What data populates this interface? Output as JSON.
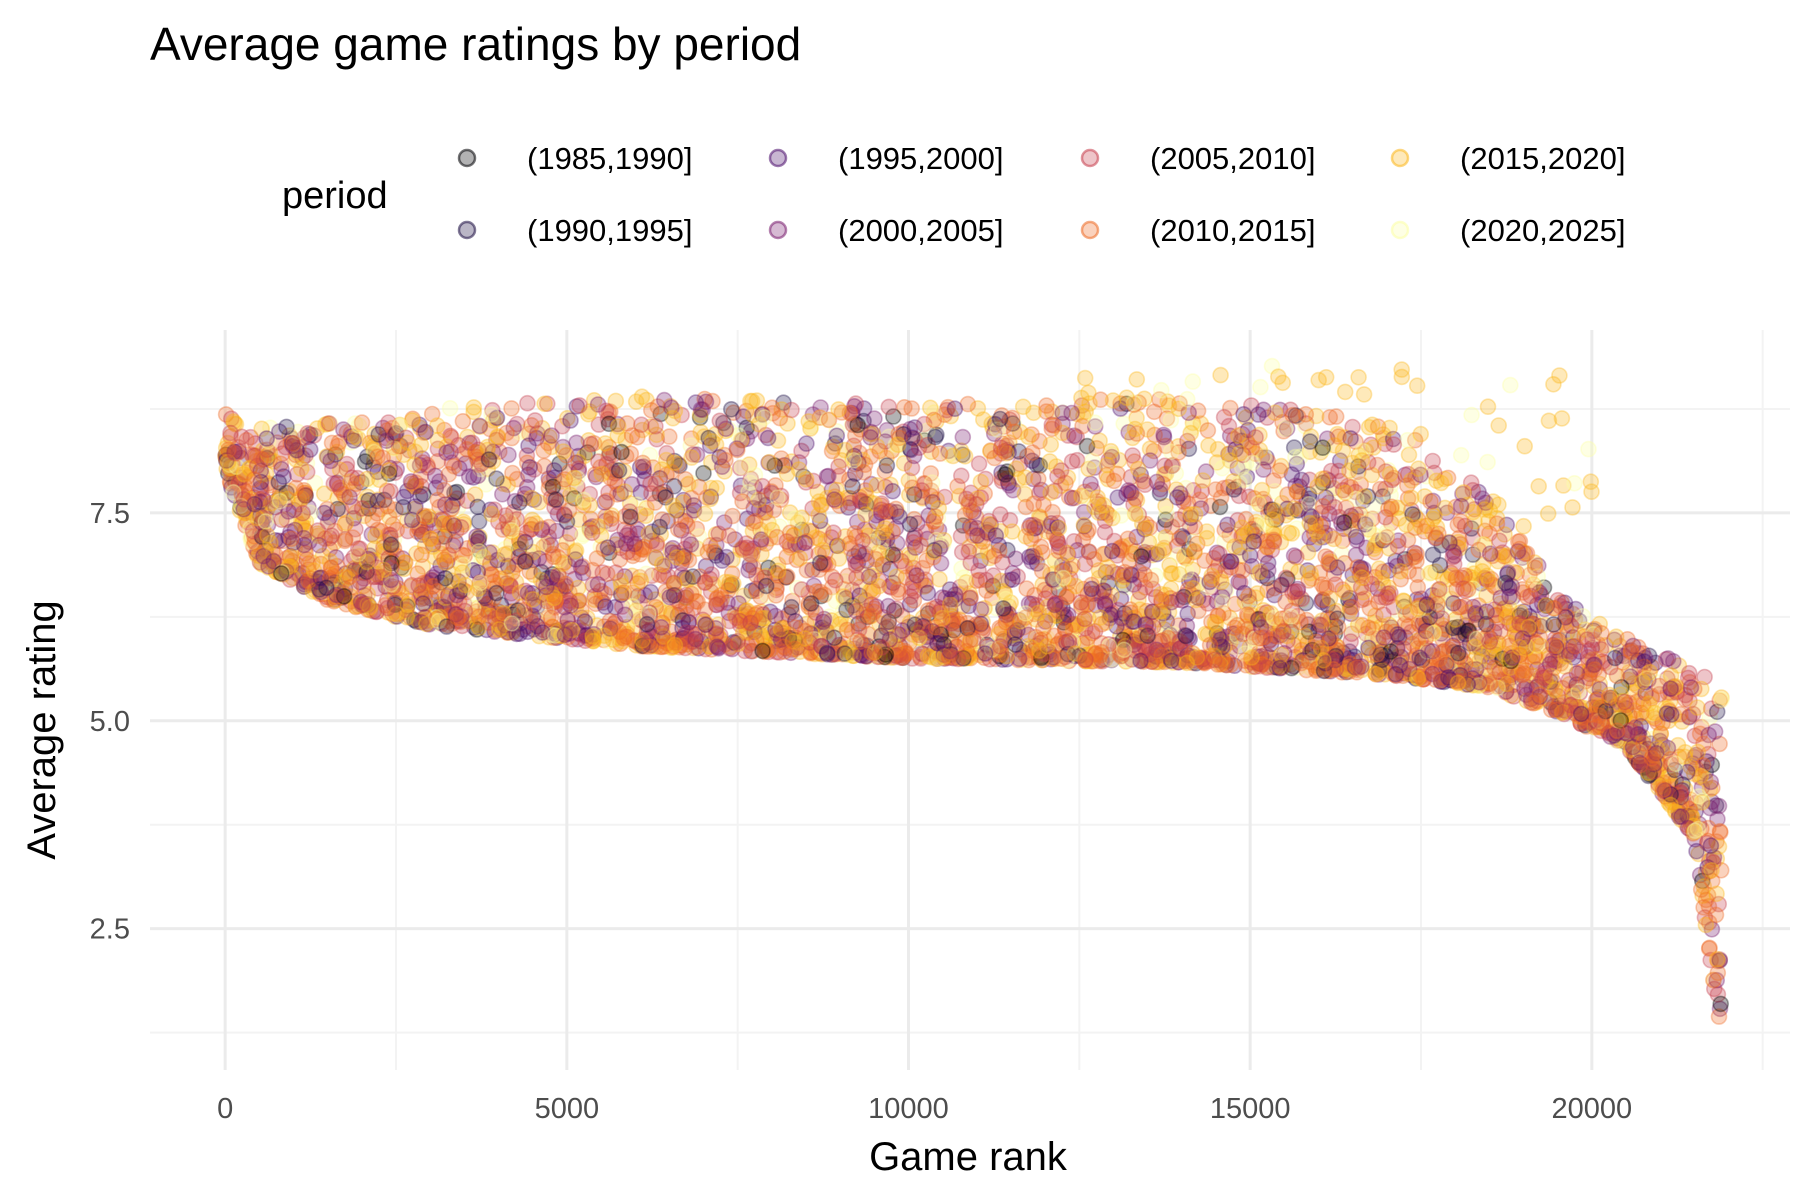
{
  "chart_data": {
    "type": "scatter",
    "title": "Average game ratings by period",
    "xlabel": "Game rank",
    "ylabel": "Average rating",
    "xlim": [
      -1100,
      22900
    ],
    "ylim": [
      0.8,
      9.7
    ],
    "x_ticks": [
      0,
      5000,
      10000,
      15000,
      20000
    ],
    "x_tick_labels": [
      "0",
      "5000",
      "10000",
      "15000",
      "20000"
    ],
    "y_ticks": [
      2.5,
      5.0,
      7.5
    ],
    "y_tick_labels": [
      "2.5",
      "5.0",
      "7.5"
    ],
    "grid": true,
    "legend": {
      "title": "period",
      "position": "top",
      "entries": [
        {
          "label": "(1985,1990]",
          "color": "#000004"
        },
        {
          "label": "(1990,1995]",
          "color": "#1b0c41"
        },
        {
          "label": "(1995,2000]",
          "color": "#4a0c6b"
        },
        {
          "label": "(2000,2005]",
          "color": "#781c6d"
        },
        {
          "label": "(2005,2010]",
          "color": "#c73e4c"
        },
        {
          "label": "(2010,2015]",
          "color": "#ed6925"
        },
        {
          "label": "(2015,2020]",
          "color": "#fbb61a"
        },
        {
          "label": "(2020,2025]",
          "color": "#fcffa4"
        }
      ]
    },
    "point_opacity": 0.3,
    "series_weights": [
      0.02,
      0.04,
      0.08,
      0.12,
      0.16,
      0.26,
      0.26,
      0.06
    ],
    "n_points_approx": 5200,
    "trend": {
      "rank": [
        0,
        500,
        1500,
        3000,
        6000,
        10000,
        14000,
        17000,
        18500,
        19500,
        20500,
        21500,
        21900
      ],
      "min_rating": [
        8.0,
        6.9,
        6.45,
        6.15,
        5.9,
        5.75,
        5.7,
        5.55,
        5.4,
        5.1,
        4.7,
        3.6,
        1.1
      ],
      "max_rating": [
        8.7,
        8.55,
        8.6,
        8.75,
        8.9,
        8.8,
        8.9,
        8.6,
        7.8,
        6.5,
        6.0,
        5.6,
        5.5
      ]
    }
  }
}
